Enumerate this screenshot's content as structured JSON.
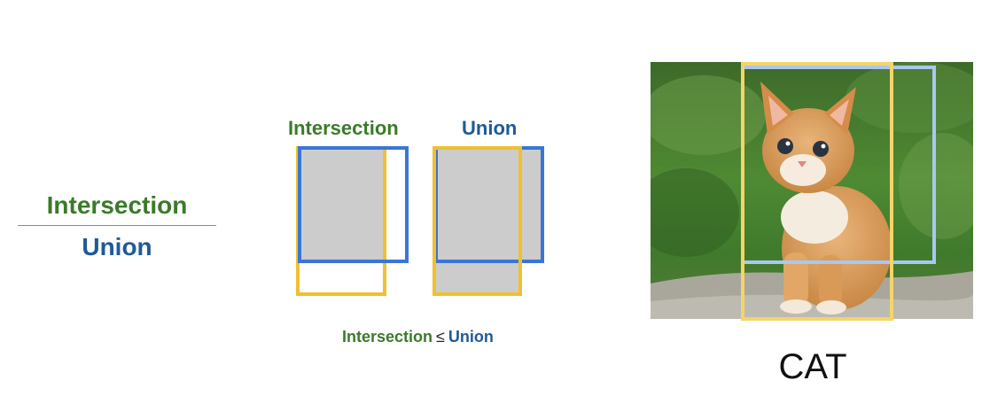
{
  "fraction": {
    "numerator": "Intersection",
    "denominator": "Union"
  },
  "diagram": {
    "intersection_label": "Intersection",
    "union_label": "Union",
    "inequality": {
      "left": "Intersection",
      "operator": "≤",
      "right": "Union"
    }
  },
  "photo": {
    "class_label": "CAT"
  },
  "colors": {
    "intersection_green": "#3b7a2a",
    "union_blue": "#1f5a96",
    "box_blue": "#3a76d6",
    "box_yellow": "#f0c030",
    "overlap_gray": "#cccccc",
    "photo_box_blue": "#a8c8f0",
    "photo_box_yellow": "#f5d46a"
  }
}
